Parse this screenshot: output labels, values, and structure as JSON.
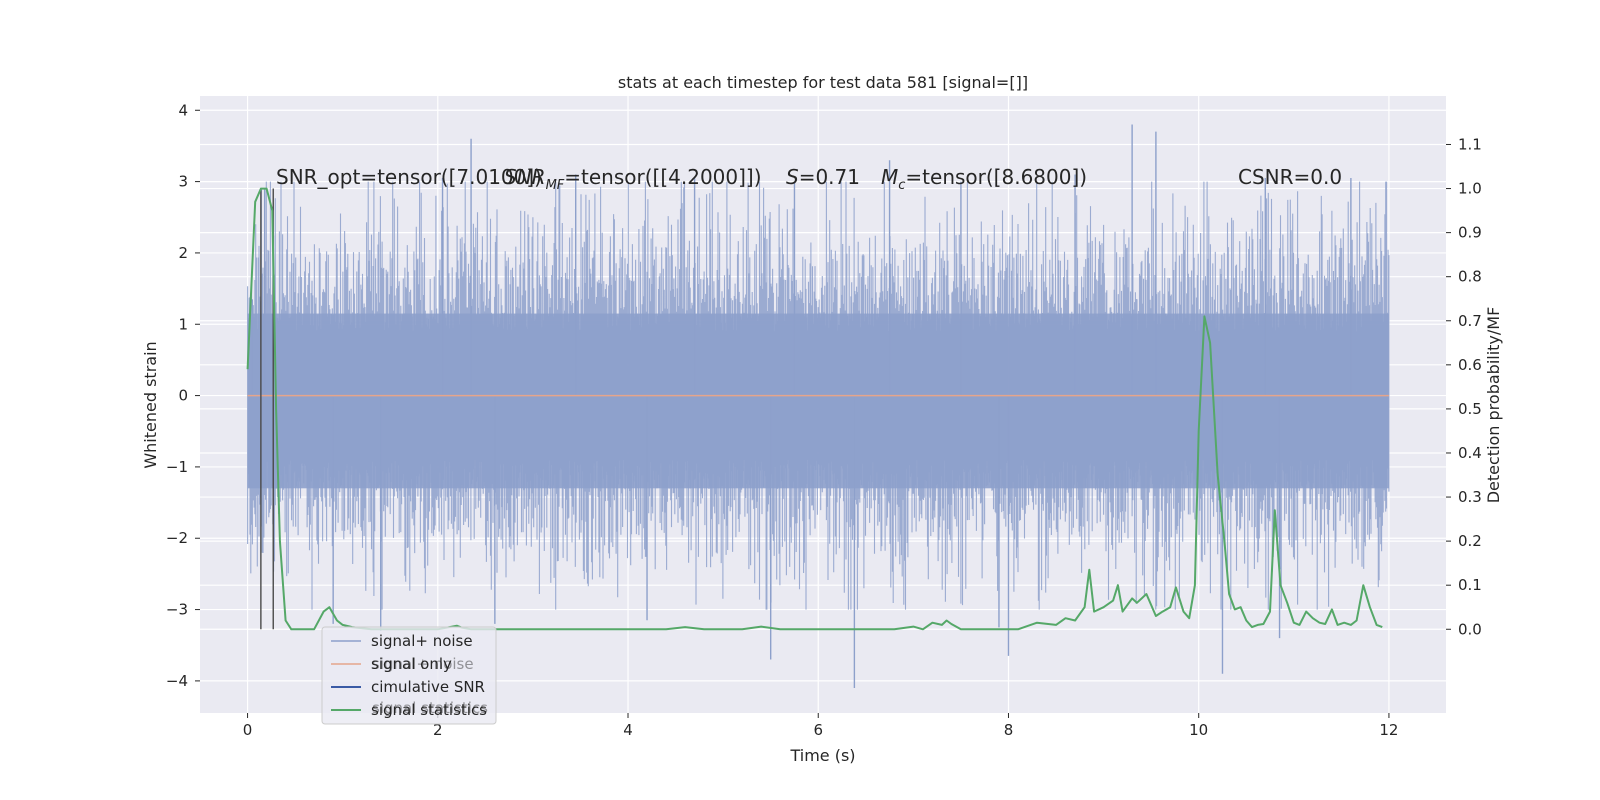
{
  "chart_data": {
    "type": "line",
    "title": "stats at each timestep for test data 581 [signal=[]]",
    "xlabel": "Time (s)",
    "ylabel": "Whitened strain",
    "y2label": "Detection probability/MF",
    "xlim": [
      -0.5,
      12.6
    ],
    "ylim": [
      -4.45,
      4.2
    ],
    "y2lim": [
      -0.19,
      1.21
    ],
    "xticks": [
      0,
      2,
      4,
      6,
      8,
      10,
      12
    ],
    "xtick_labels": [
      "0",
      "2",
      "4",
      "6",
      "8",
      "10",
      "12"
    ],
    "yticks": [
      4,
      3,
      2,
      1,
      0,
      -1,
      -2,
      -3,
      -4
    ],
    "ytick_labels": [
      "4",
      "3",
      "2",
      "1",
      "0",
      "−1",
      "−2",
      "−3",
      "−4"
    ],
    "y2ticks": [
      1.1,
      1.0,
      0.9,
      0.8,
      0.7,
      0.6,
      0.5,
      0.4,
      0.3,
      0.2,
      0.1,
      0.0
    ],
    "y2tick_labels": [
      "1.1",
      "1.0",
      "0.9",
      "0.8",
      "0.7",
      "0.6",
      "0.5",
      "0.4",
      "0.3",
      "0.2",
      "0.1",
      "0.0"
    ],
    "grid": true,
    "legend_position": "lower-left",
    "series": [
      {
        "name": "signal+ noise",
        "color": "#8da0cb",
        "note": "dense noise band roughly within [-3.5, 3.5], core within [-1.3, 1.2]",
        "x_range": [
          0,
          12
        ],
        "band_core": [
          -1.3,
          1.15
        ],
        "band_typical": [
          -2.4,
          2.3
        ],
        "spikes": [
          {
            "x": 0.05,
            "y": 1.35
          },
          {
            "x": 0.18,
            "y": 2.9
          },
          {
            "x": 0.9,
            "y": -3.2
          },
          {
            "x": 1.4,
            "y": -3.3
          },
          {
            "x": 2.05,
            "y": 3.05
          },
          {
            "x": 2.35,
            "y": 3.6
          },
          {
            "x": 2.6,
            "y": -3.2
          },
          {
            "x": 3.45,
            "y": 3.1
          },
          {
            "x": 4.2,
            "y": -3.15
          },
          {
            "x": 4.7,
            "y": 3.05
          },
          {
            "x": 5.5,
            "y": -3.7
          },
          {
            "x": 5.75,
            "y": 3.0
          },
          {
            "x": 6.38,
            "y": -4.1
          },
          {
            "x": 6.75,
            "y": 3.3
          },
          {
            "x": 7.5,
            "y": 3.0
          },
          {
            "x": 7.9,
            "y": -3.25
          },
          {
            "x": 8.0,
            "y": -3.65
          },
          {
            "x": 8.7,
            "y": 3.1
          },
          {
            "x": 9.3,
            "y": 3.8
          },
          {
            "x": 9.55,
            "y": 3.7
          },
          {
            "x": 10.25,
            "y": -3.9
          },
          {
            "x": 10.7,
            "y": 3.05
          },
          {
            "x": 10.85,
            "y": -3.4
          },
          {
            "x": 11.6,
            "y": 3.05
          }
        ]
      },
      {
        "name": "signal only",
        "color": "#e5a58b",
        "x": [
          0,
          12
        ],
        "y": [
          0,
          0
        ]
      },
      {
        "name": "cimulative SNR",
        "color": "#3b5ba5",
        "x": [],
        "y": []
      },
      {
        "name": "signal statistics",
        "color": "#55a868",
        "axis": "right",
        "x": [
          0.0,
          0.08,
          0.14,
          0.2,
          0.26,
          0.3,
          0.34,
          0.4,
          0.46,
          0.55,
          0.7,
          0.8,
          0.86,
          0.94,
          1.0,
          1.1,
          1.3,
          1.6,
          2.0,
          2.2,
          2.25,
          2.35,
          2.6,
          3.0,
          3.4,
          3.8,
          4.2,
          4.4,
          4.6,
          4.8,
          5.0,
          5.2,
          5.4,
          5.6,
          5.8,
          6.0,
          6.4,
          6.8,
          7.0,
          7.1,
          7.2,
          7.3,
          7.35,
          7.4,
          7.5,
          7.7,
          7.9,
          8.1,
          8.3,
          8.5,
          8.6,
          8.7,
          8.8,
          8.85,
          8.9,
          9.0,
          9.1,
          9.15,
          9.2,
          9.3,
          9.35,
          9.45,
          9.55,
          9.62,
          9.7,
          9.76,
          9.84,
          9.9,
          9.96,
          10.0,
          10.06,
          10.12,
          10.2,
          10.27,
          10.32,
          10.38,
          10.44,
          10.5,
          10.56,
          10.62,
          10.68,
          10.75,
          10.8,
          10.86,
          10.93,
          11.0,
          11.06,
          11.13,
          11.2,
          11.27,
          11.33,
          11.4,
          11.46,
          11.53,
          11.6,
          11.66,
          11.73,
          11.8,
          11.87,
          11.93
        ],
        "y": [
          0.59,
          0.97,
          1.0,
          1.0,
          0.95,
          0.5,
          0.2,
          0.02,
          0.0,
          0.0,
          0.0,
          0.04,
          0.05,
          0.02,
          0.01,
          0.005,
          0.0,
          0.0,
          0.0,
          0.008,
          0.004,
          0.0,
          0.0,
          0.0,
          0.0,
          0.0,
          0.0,
          0.0,
          0.005,
          0.0,
          0.0,
          0.0,
          0.006,
          0.0,
          0.0,
          0.0,
          0.0,
          0.0,
          0.006,
          0.0,
          0.015,
          0.01,
          0.02,
          0.012,
          0.0,
          0.0,
          0.0,
          0.0,
          0.015,
          0.01,
          0.025,
          0.02,
          0.05,
          0.135,
          0.04,
          0.05,
          0.065,
          0.1,
          0.04,
          0.07,
          0.06,
          0.08,
          0.03,
          0.04,
          0.05,
          0.095,
          0.04,
          0.025,
          0.1,
          0.45,
          0.71,
          0.65,
          0.35,
          0.2,
          0.08,
          0.045,
          0.05,
          0.02,
          0.005,
          0.01,
          0.012,
          0.04,
          0.27,
          0.1,
          0.06,
          0.015,
          0.01,
          0.04,
          0.025,
          0.015,
          0.012,
          0.045,
          0.01,
          0.015,
          0.01,
          0.02,
          0.1,
          0.05,
          0.01,
          0.005
        ]
      }
    ],
    "vlines": [
      0.14,
      0.27
    ],
    "annotations": {
      "snr_opt": "SNR_opt=tensor([7.0100])",
      "snr_mf_prefix": "SNR",
      "snr_mf_sub": "MF",
      "snr_mf_value": "=tensor([[4.2000]])",
      "s_label": "S",
      "s_value": "=0.71",
      "mc_label": "M",
      "mc_sub": "c",
      "mc_value": "=tensor([8.6800])",
      "csnr": "CSNR=0.0"
    },
    "legend_ghost": [
      "signal+ noise",
      "signal statistics"
    ]
  },
  "colors": {
    "plot_bg": "#eaeaf2",
    "grid": "#ffffff",
    "vline": "#4a4a4a"
  }
}
